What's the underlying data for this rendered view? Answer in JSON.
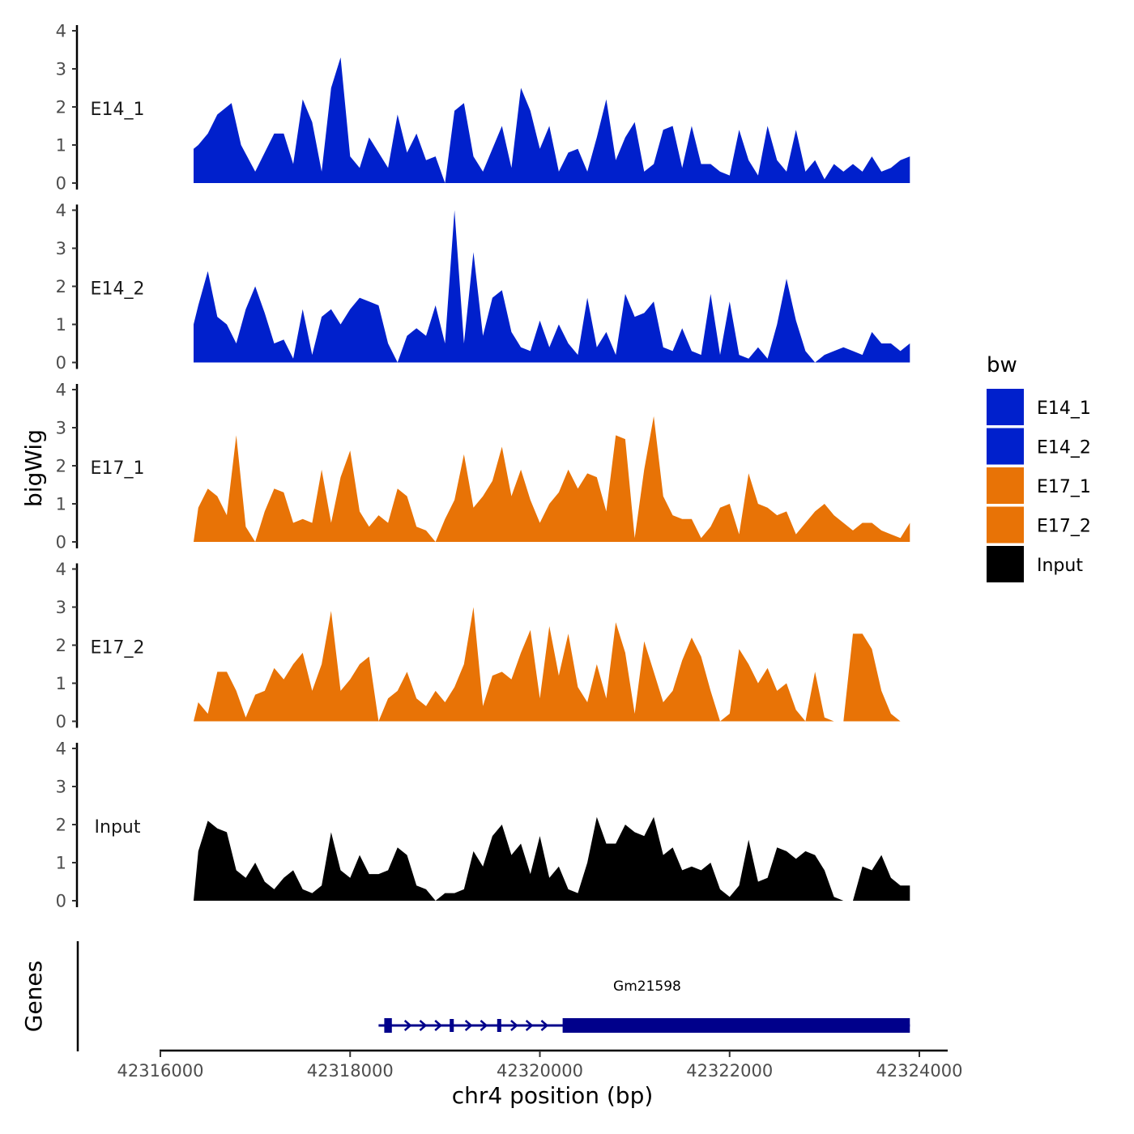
{
  "chart_data": {
    "type": "area",
    "title": "",
    "xlabel": "chr4 position (bp)",
    "ylabel": "bigWig",
    "genes_label": "Genes",
    "xlim": [
      42316000,
      42324000
    ],
    "ylim": [
      0,
      4
    ],
    "x_ticks": [
      42316000,
      42318000,
      42320000,
      42322000,
      42324000
    ],
    "x_tick_labels": [
      "42316000",
      "42318000",
      "42320000",
      "42322000",
      "42324000"
    ],
    "y_ticks": [
      0,
      1,
      2,
      3,
      4
    ],
    "y_tick_labels": [
      "0",
      "1",
      "2",
      "3",
      "4"
    ],
    "legend": {
      "title": "bw",
      "position": "right",
      "entries": [
        {
          "label": "E14_1",
          "color": "#0020CC"
        },
        {
          "label": "E14_2",
          "color": "#0020CC"
        },
        {
          "label": "E17_1",
          "color": "#E87306"
        },
        {
          "label": "E17_2",
          "color": "#E87306"
        },
        {
          "label": "Input",
          "color": "#000000"
        }
      ]
    },
    "series": [
      {
        "name": "E14_1",
        "color": "#0020CC",
        "x": [
          42316350,
          42316400,
          42316500,
          42316600,
          42316750,
          42316850,
          42317000,
          42317100,
          42317200,
          42317300,
          42317400,
          42317500,
          42317600,
          42317700,
          42317800,
          42317900,
          42318000,
          42318100,
          42318200,
          42318300,
          42318400,
          42318500,
          42318600,
          42318700,
          42318800,
          42318900,
          42319000,
          42319100,
          42319200,
          42319300,
          42319400,
          42319500,
          42319600,
          42319700,
          42319800,
          42319900,
          42320000,
          42320100,
          42320200,
          42320300,
          42320400,
          42320500,
          42320600,
          42320700,
          42320800,
          42320900,
          42321000,
          42321100,
          42321200,
          42321300,
          42321400,
          42321500,
          42321600,
          42321700,
          42321800,
          42321900,
          42322000,
          42322100,
          42322200,
          42322300,
          42322400,
          42322500,
          42322600,
          42322700,
          42322800,
          42322900,
          42323000,
          42323100,
          42323200,
          42323300,
          42323400,
          42323500,
          42323600,
          42323700,
          42323800,
          42323900
        ],
        "values": [
          0.9,
          1.0,
          1.3,
          1.8,
          2.1,
          1.0,
          0.3,
          0.8,
          1.3,
          1.3,
          0.5,
          2.2,
          1.6,
          0.3,
          2.5,
          3.3,
          0.7,
          0.4,
          1.2,
          0.8,
          0.4,
          1.8,
          0.8,
          1.3,
          0.6,
          0.7,
          0.0,
          1.9,
          2.1,
          0.7,
          0.3,
          0.9,
          1.5,
          0.4,
          2.5,
          1.9,
          0.9,
          1.5,
          0.3,
          0.8,
          0.9,
          0.3,
          1.2,
          2.2,
          0.6,
          1.2,
          1.6,
          0.3,
          0.5,
          1.4,
          1.5,
          0.4,
          1.5,
          0.5,
          0.5,
          0.3,
          0.2,
          1.4,
          0.6,
          0.2,
          1.5,
          0.6,
          0.3,
          1.4,
          0.3,
          0.6,
          0.1,
          0.5,
          0.3,
          0.5,
          0.3,
          0.7,
          0.3,
          0.4,
          0.6,
          0.7
        ]
      },
      {
        "name": "E14_2",
        "color": "#0020CC",
        "x": [
          42316350,
          42316400,
          42316500,
          42316600,
          42316700,
          42316800,
          42316900,
          42317000,
          42317100,
          42317200,
          42317300,
          42317400,
          42317500,
          42317600,
          42317700,
          42317800,
          42317900,
          42318000,
          42318100,
          42318200,
          42318300,
          42318400,
          42318500,
          42318600,
          42318700,
          42318800,
          42318900,
          42319000,
          42319100,
          42319200,
          42319300,
          42319400,
          42319500,
          42319600,
          42319700,
          42319800,
          42319900,
          42320000,
          42320100,
          42320200,
          42320300,
          42320400,
          42320500,
          42320600,
          42320700,
          42320800,
          42320900,
          42321000,
          42321100,
          42321200,
          42321300,
          42321400,
          42321500,
          42321600,
          42321700,
          42321800,
          42321900,
          42322000,
          42322100,
          42322200,
          42322300,
          42322400,
          42322500,
          42322600,
          42322700,
          42322800,
          42322900,
          42323000,
          42323100,
          42323200,
          42323300,
          42323400,
          42323500,
          42323600,
          42323700,
          42323800,
          42323900
        ],
        "values": [
          1.0,
          1.5,
          2.4,
          1.2,
          1.0,
          0.5,
          1.4,
          2.0,
          1.3,
          0.5,
          0.6,
          0.1,
          1.4,
          0.2,
          1.2,
          1.4,
          1.0,
          1.4,
          1.7,
          1.6,
          1.5,
          0.5,
          0.0,
          0.7,
          0.9,
          0.7,
          1.5,
          0.5,
          4.0,
          0.5,
          2.9,
          0.7,
          1.7,
          1.9,
          0.8,
          0.4,
          0.3,
          1.1,
          0.4,
          1.0,
          0.5,
          0.2,
          1.7,
          0.4,
          0.8,
          0.2,
          1.8,
          1.2,
          1.3,
          1.6,
          0.4,
          0.3,
          0.9,
          0.3,
          0.2,
          1.8,
          0.2,
          1.6,
          0.2,
          0.1,
          0.4,
          0.1,
          1.0,
          2.2,
          1.1,
          0.3,
          0.0,
          0.2,
          0.3,
          0.4,
          0.3,
          0.2,
          0.8,
          0.5,
          0.5,
          0.3,
          0.5
        ]
      },
      {
        "name": "E17_1",
        "color": "#E87306",
        "x": [
          42316350,
          42316400,
          42316500,
          42316600,
          42316700,
          42316800,
          42316900,
          42317000,
          42317100,
          42317200,
          42317300,
          42317400,
          42317500,
          42317600,
          42317700,
          42317800,
          42317900,
          42318000,
          42318100,
          42318200,
          42318300,
          42318400,
          42318500,
          42318600,
          42318700,
          42318800,
          42318900,
          42319000,
          42319100,
          42319200,
          42319300,
          42319400,
          42319500,
          42319600,
          42319700,
          42319800,
          42319900,
          42320000,
          42320100,
          42320200,
          42320300,
          42320400,
          42320500,
          42320600,
          42320700,
          42320800,
          42320900,
          42321000,
          42321100,
          42321200,
          42321300,
          42321400,
          42321500,
          42321600,
          42321700,
          42321800,
          42321900,
          42322000,
          42322100,
          42322200,
          42322300,
          42322400,
          42322500,
          42322600,
          42322700,
          42322800,
          42322900,
          42323000,
          42323100,
          42323200,
          42323300,
          42323400,
          42323500,
          42323600,
          42323700,
          42323800,
          42323900
        ],
        "values": [
          0.0,
          0.9,
          1.4,
          1.2,
          0.7,
          2.8,
          0.4,
          0.0,
          0.8,
          1.4,
          1.3,
          0.5,
          0.6,
          0.5,
          1.9,
          0.5,
          1.7,
          2.4,
          0.8,
          0.4,
          0.7,
          0.5,
          1.4,
          1.2,
          0.4,
          0.3,
          0.0,
          0.6,
          1.1,
          2.3,
          0.9,
          1.2,
          1.6,
          2.5,
          1.2,
          1.9,
          1.1,
          0.5,
          1.0,
          1.3,
          1.9,
          1.4,
          1.8,
          1.7,
          0.8,
          2.8,
          2.7,
          0.1,
          1.9,
          3.3,
          1.2,
          0.7,
          0.6,
          0.6,
          0.1,
          0.4,
          0.9,
          1.0,
          0.2,
          1.8,
          1.0,
          0.9,
          0.7,
          0.8,
          0.2,
          0.5,
          0.8,
          1.0,
          0.7,
          0.5,
          0.3,
          0.5,
          0.5,
          0.3,
          0.2,
          0.1,
          0.5
        ]
      },
      {
        "name": "E17_2",
        "color": "#E87306",
        "x": [
          42316350,
          42316400,
          42316500,
          42316600,
          42316700,
          42316800,
          42316900,
          42317000,
          42317100,
          42317200,
          42317300,
          42317400,
          42317500,
          42317600,
          42317700,
          42317800,
          42317900,
          42318000,
          42318100,
          42318200,
          42318300,
          42318400,
          42318500,
          42318600,
          42318700,
          42318800,
          42318900,
          42319000,
          42319100,
          42319200,
          42319300,
          42319400,
          42319500,
          42319600,
          42319700,
          42319800,
          42319900,
          42320000,
          42320100,
          42320200,
          42320300,
          42320400,
          42320500,
          42320600,
          42320700,
          42320800,
          42320900,
          42321000,
          42321100,
          42321200,
          42321300,
          42321400,
          42321500,
          42321600,
          42321700,
          42321800,
          42321900,
          42322000,
          42322100,
          42322200,
          42322300,
          42322400,
          42322500,
          42322600,
          42322700,
          42322800,
          42322900,
          42323000,
          42323100,
          42323200,
          42323300,
          42323400,
          42323500,
          42323600,
          42323700,
          42323800,
          42323900
        ],
        "values": [
          0.0,
          0.5,
          0.2,
          1.3,
          1.3,
          0.8,
          0.1,
          0.7,
          0.8,
          1.4,
          1.1,
          1.5,
          1.8,
          0.8,
          1.5,
          2.9,
          0.8,
          1.1,
          1.5,
          1.7,
          0.0,
          0.6,
          0.8,
          1.3,
          0.6,
          0.4,
          0.8,
          0.5,
          0.9,
          1.5,
          3.0,
          0.4,
          1.2,
          1.3,
          1.1,
          1.8,
          2.4,
          0.6,
          2.5,
          1.2,
          2.3,
          0.9,
          0.5,
          1.5,
          0.6,
          2.6,
          1.8,
          0.2,
          2.1,
          1.3,
          0.5,
          0.8,
          1.6,
          2.2,
          1.7,
          0.8,
          0.0,
          0.2,
          1.9,
          1.5,
          1.0,
          1.4,
          0.8,
          1.0,
          0.3,
          0.0,
          1.3,
          0.1,
          0.0,
          0.0,
          2.3,
          2.3,
          1.9,
          0.8,
          0.2,
          0.0,
          0.0
        ]
      },
      {
        "name": "Input",
        "color": "#000000",
        "x": [
          42316350,
          42316400,
          42316500,
          42316600,
          42316700,
          42316800,
          42316900,
          42317000,
          42317100,
          42317200,
          42317300,
          42317400,
          42317500,
          42317600,
          42317700,
          42317800,
          42317900,
          42318000,
          42318100,
          42318200,
          42318300,
          42318400,
          42318500,
          42318600,
          42318700,
          42318800,
          42318900,
          42319000,
          42319100,
          42319200,
          42319300,
          42319400,
          42319500,
          42319600,
          42319700,
          42319800,
          42319900,
          42320000,
          42320100,
          42320200,
          42320300,
          42320400,
          42320500,
          42320600,
          42320700,
          42320800,
          42320900,
          42321000,
          42321100,
          42321200,
          42321300,
          42321400,
          42321500,
          42321600,
          42321700,
          42321800,
          42321900,
          42322000,
          42322100,
          42322200,
          42322300,
          42322400,
          42322500,
          42322600,
          42322700,
          42322800,
          42322900,
          42323000,
          42323100,
          42323200,
          42323300,
          42323400,
          42323500,
          42323600,
          42323700,
          42323800,
          42323900
        ],
        "values": [
          0.0,
          1.3,
          2.1,
          1.9,
          1.8,
          0.8,
          0.6,
          1.0,
          0.5,
          0.3,
          0.6,
          0.8,
          0.3,
          0.2,
          0.4,
          1.8,
          0.8,
          0.6,
          1.2,
          0.7,
          0.7,
          0.8,
          1.4,
          1.2,
          0.4,
          0.3,
          0.0,
          0.2,
          0.2,
          0.3,
          1.3,
          0.9,
          1.7,
          2.0,
          1.2,
          1.5,
          0.7,
          1.7,
          0.6,
          0.9,
          0.3,
          0.2,
          1.0,
          2.2,
          1.5,
          1.5,
          2.0,
          1.8,
          1.7,
          2.2,
          1.2,
          1.4,
          0.8,
          0.9,
          0.8,
          1.0,
          0.3,
          0.1,
          0.4,
          1.6,
          0.5,
          0.6,
          1.4,
          1.3,
          1.1,
          1.3,
          1.2,
          0.8,
          0.1,
          0.0,
          0.0,
          0.9,
          0.8,
          1.2,
          0.6,
          0.4,
          0.4
        ]
      }
    ],
    "gene_track": {
      "gene_name": "Gm21598",
      "strand": "+",
      "color": "#00008B",
      "start": 42318300,
      "end": 42323900,
      "exons": [
        [
          42318360,
          42318440
        ],
        [
          42319050,
          42319080
        ],
        [
          42319550,
          42319580
        ],
        [
          42320240,
          42323900
        ]
      ]
    }
  }
}
